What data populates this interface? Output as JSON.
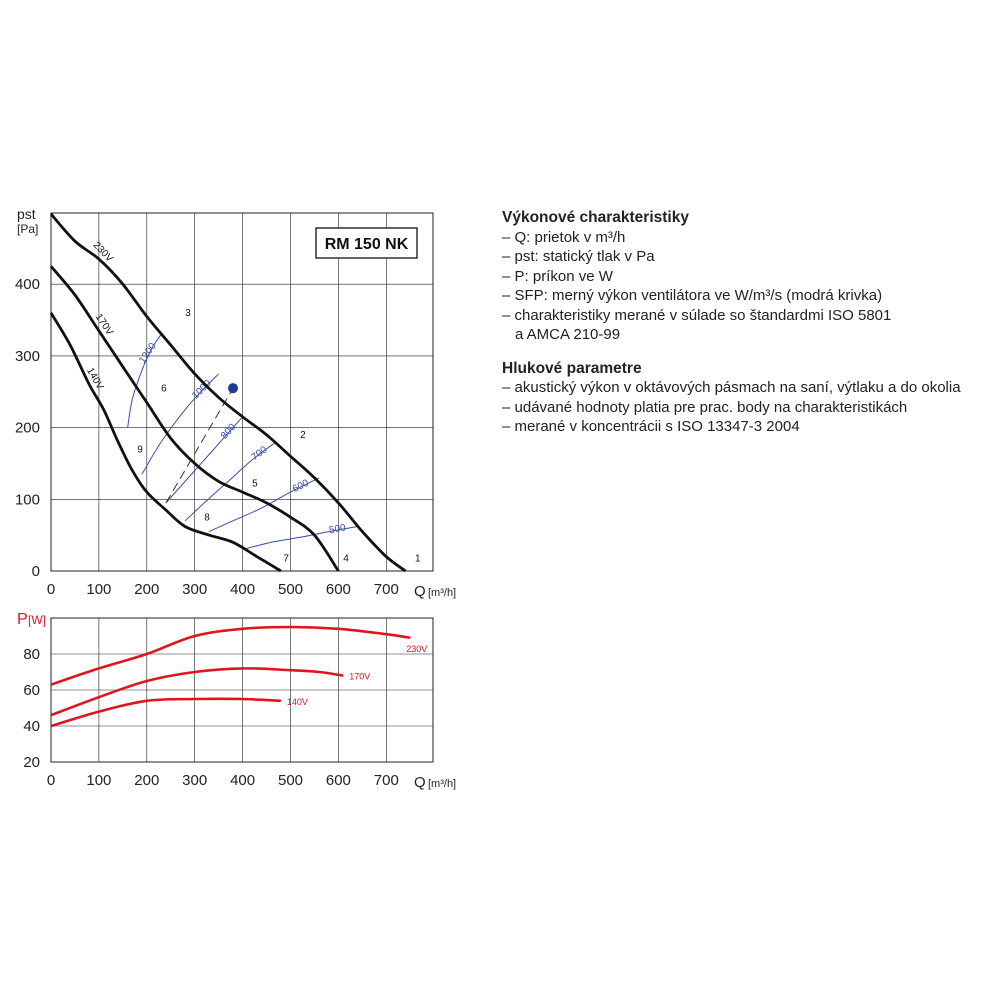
{
  "colors": {
    "curve": "#111111",
    "sfp": "#3a4ea8",
    "power": "#e0141e",
    "marker": "#1f3a93"
  },
  "notes": {
    "perf_title": "Výkonové charakteristiky",
    "perf_items": [
      "– Q: prietok v m³/h",
      "– pst: statický tlak v Pa",
      "– P: príkon ve W",
      "– SFP: merný výkon ventilátora ve W/m³/s (modrá krivka)",
      "– charakteristiky merané v súlade so štandardmi ISO 5801",
      "a AMCA 210-99"
    ],
    "noise_title": "Hlukové parametre",
    "noise_items": [
      "– akustický výkon v oktávových pásmach na saní, výtlaku a do okolia",
      "– udávané hodnoty platia pre prac. body na charakteristikách",
      "– merané v koncentrácii s ISO 13347-3 2004"
    ]
  },
  "chart_data": [
    {
      "type": "line",
      "title": "RM 150 NK",
      "ylabel": "pst",
      "ylabel_unit": "[Pa]",
      "xlabel": "Q",
      "xlabel_unit": "[m³/h]",
      "xlim": [
        0,
        800
      ],
      "ylim": [
        0,
        500
      ],
      "xticks": [
        0,
        100,
        200,
        300,
        400,
        500,
        600,
        700
      ],
      "yticks": [
        0,
        100,
        200,
        300,
        400
      ],
      "grid": true,
      "series": [
        {
          "name": "230V",
          "points": [
            [
              0,
              498
            ],
            [
              50,
              460
            ],
            [
              100,
              435
            ],
            [
              150,
              400
            ],
            [
              200,
              355
            ],
            [
              250,
              315
            ],
            [
              300,
              275
            ],
            [
              350,
              242
            ],
            [
              400,
              215
            ],
            [
              450,
              190
            ],
            [
              500,
              160
            ],
            [
              550,
              130
            ],
            [
              600,
              95
            ],
            [
              650,
              55
            ],
            [
              700,
              20
            ],
            [
              740,
              0
            ]
          ]
        },
        {
          "name": "170V",
          "points": [
            [
              0,
              425
            ],
            [
              50,
              385
            ],
            [
              100,
              335
            ],
            [
              150,
              285
            ],
            [
              200,
              235
            ],
            [
              250,
              185
            ],
            [
              300,
              150
            ],
            [
              350,
              125
            ],
            [
              400,
              110
            ],
            [
              450,
              95
            ],
            [
              500,
              75
            ],
            [
              550,
              50
            ],
            [
              600,
              0
            ]
          ]
        },
        {
          "name": "140V",
          "points": [
            [
              0,
              360
            ],
            [
              40,
              315
            ],
            [
              80,
              260
            ],
            [
              110,
              225
            ],
            [
              140,
              180
            ],
            [
              170,
              140
            ],
            [
              200,
              110
            ],
            [
              240,
              85
            ],
            [
              280,
              62
            ],
            [
              330,
              50
            ],
            [
              380,
              40
            ],
            [
              430,
              20
            ],
            [
              480,
              0
            ]
          ]
        }
      ],
      "sfp_curves": [
        {
          "label": "1200",
          "points": [
            [
              160,
              200
            ],
            [
              170,
              240
            ],
            [
              190,
              280
            ],
            [
              210,
              310
            ],
            [
              230,
              330
            ]
          ]
        },
        {
          "label": "1000",
          "points": [
            [
              190,
              135
            ],
            [
              230,
              180
            ],
            [
              280,
              225
            ],
            [
              320,
              255
            ],
            [
              350,
              275
            ]
          ]
        },
        {
          "label": "800",
          "points": [
            [
              240,
              95
            ],
            [
              280,
              125
            ],
            [
              320,
              155
            ],
            [
              360,
              185
            ],
            [
              400,
              215
            ]
          ]
        },
        {
          "label": "700",
          "points": [
            [
              280,
              70
            ],
            [
              320,
              95
            ],
            [
              370,
              125
            ],
            [
              420,
              155
            ],
            [
              470,
              180
            ]
          ]
        },
        {
          "label": "600",
          "points": [
            [
              330,
              55
            ],
            [
              380,
              70
            ],
            [
              440,
              88
            ],
            [
              500,
              110
            ],
            [
              560,
              130
            ]
          ]
        },
        {
          "label": "500",
          "points": [
            [
              400,
              30
            ],
            [
              460,
              40
            ],
            [
              520,
              47
            ],
            [
              580,
              55
            ],
            [
              640,
              62
            ]
          ]
        }
      ],
      "dashed_line": [
        [
          240,
          95
        ],
        [
          380,
          255
        ]
      ],
      "operating_point": {
        "x": 380,
        "y": 255
      },
      "point_labels": [
        {
          "label": "1",
          "x": 760,
          "y": 8
        },
        {
          "label": "2",
          "x": 520,
          "y": 180
        },
        {
          "label": "3",
          "x": 280,
          "y": 350
        },
        {
          "label": "4",
          "x": 610,
          "y": 8
        },
        {
          "label": "5",
          "x": 420,
          "y": 112
        },
        {
          "label": "6",
          "x": 230,
          "y": 245
        },
        {
          "label": "7",
          "x": 485,
          "y": 8
        },
        {
          "label": "8",
          "x": 320,
          "y": 65
        },
        {
          "label": "9",
          "x": 180,
          "y": 160
        }
      ]
    },
    {
      "type": "line",
      "ylabel": "P",
      "ylabel_unit": "[W]",
      "xlabel": "Q",
      "xlabel_unit": "[m³/h]",
      "xlim": [
        0,
        800
      ],
      "ylim": [
        20,
        100
      ],
      "xticks": [
        0,
        100,
        200,
        300,
        400,
        500,
        600,
        700
      ],
      "yticks": [
        20,
        40,
        60,
        80
      ],
      "grid": true,
      "series": [
        {
          "name": "230V",
          "points": [
            [
              0,
              63
            ],
            [
              100,
              72
            ],
            [
              200,
              80
            ],
            [
              300,
              90
            ],
            [
              400,
              94
            ],
            [
              500,
              95
            ],
            [
              600,
              94
            ],
            [
              700,
              91
            ],
            [
              750,
              89
            ]
          ]
        },
        {
          "name": "170V",
          "points": [
            [
              0,
              46
            ],
            [
              100,
              56
            ],
            [
              200,
              65
            ],
            [
              300,
              70
            ],
            [
              400,
              72
            ],
            [
              500,
              71
            ],
            [
              560,
              70
            ],
            [
              610,
              68
            ]
          ]
        },
        {
          "name": "140V",
          "points": [
            [
              0,
              40
            ],
            [
              100,
              48
            ],
            [
              200,
              54
            ],
            [
              300,
              55
            ],
            [
              400,
              55
            ],
            [
              480,
              54
            ]
          ]
        }
      ]
    }
  ]
}
